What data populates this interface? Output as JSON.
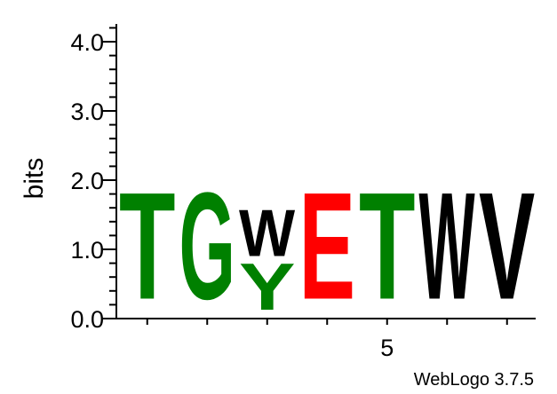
{
  "chart_data": {
    "type": "sequence-logo",
    "ylabel": "bits",
    "ylim": [
      0,
      4.32
    ],
    "y_major_ticks": [
      0.0,
      1.0,
      2.0,
      3.0,
      4.0
    ],
    "y_major_labels": [
      "0.0",
      "1.0",
      "2.0",
      "3.0",
      "4.0"
    ],
    "y_minor_step": 0.2,
    "x_positions": 7,
    "x_ticks": [
      1,
      2,
      3,
      4,
      5,
      6,
      7
    ],
    "x_tick_labels": [
      "",
      "",
      "",
      "",
      "5",
      "",
      ""
    ],
    "credit": "WebLogo 3.7.5",
    "colors": {
      "green": "#008000",
      "red": "#ff0000",
      "black": "#000000"
    },
    "columns": [
      {
        "position": 1,
        "stack": [
          {
            "letter": "T",
            "bits": 1.78,
            "color": "#008000"
          }
        ]
      },
      {
        "position": 2,
        "stack": [
          {
            "letter": "G",
            "bits": 1.78,
            "color": "#008000"
          }
        ]
      },
      {
        "position": 3,
        "stack": [
          {
            "letter": "Y",
            "bits": 0.78,
            "color": "#008000"
          },
          {
            "letter": "W",
            "bits": 0.78,
            "color": "#000000"
          }
        ]
      },
      {
        "position": 4,
        "stack": [
          {
            "letter": "E",
            "bits": 1.78,
            "color": "#ff0000"
          }
        ]
      },
      {
        "position": 5,
        "stack": [
          {
            "letter": "T",
            "bits": 1.78,
            "color": "#008000"
          }
        ]
      },
      {
        "position": 6,
        "stack": [
          {
            "letter": "W",
            "bits": 1.78,
            "color": "#000000"
          }
        ]
      },
      {
        "position": 7,
        "stack": [
          {
            "letter": "V",
            "bits": 1.78,
            "color": "#000000"
          }
        ]
      }
    ]
  }
}
